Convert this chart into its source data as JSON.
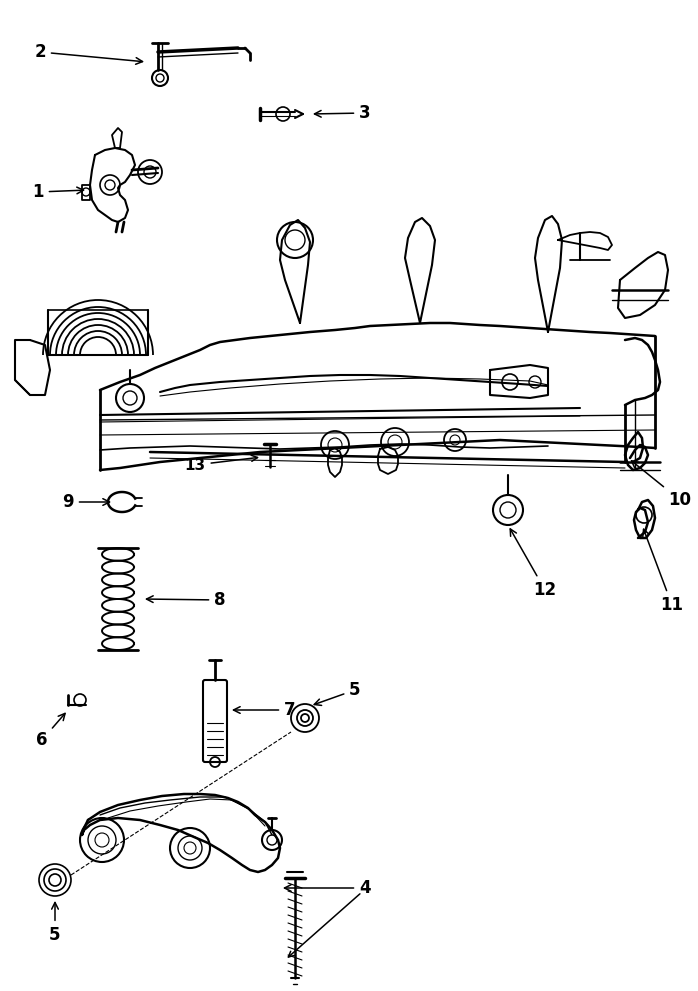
{
  "bg_color": "#ffffff",
  "line_color": "#000000",
  "fig_width": 6.98,
  "fig_height": 9.91,
  "dpi": 100,
  "label_fontsize": 11,
  "annotation_lw": 1.0
}
